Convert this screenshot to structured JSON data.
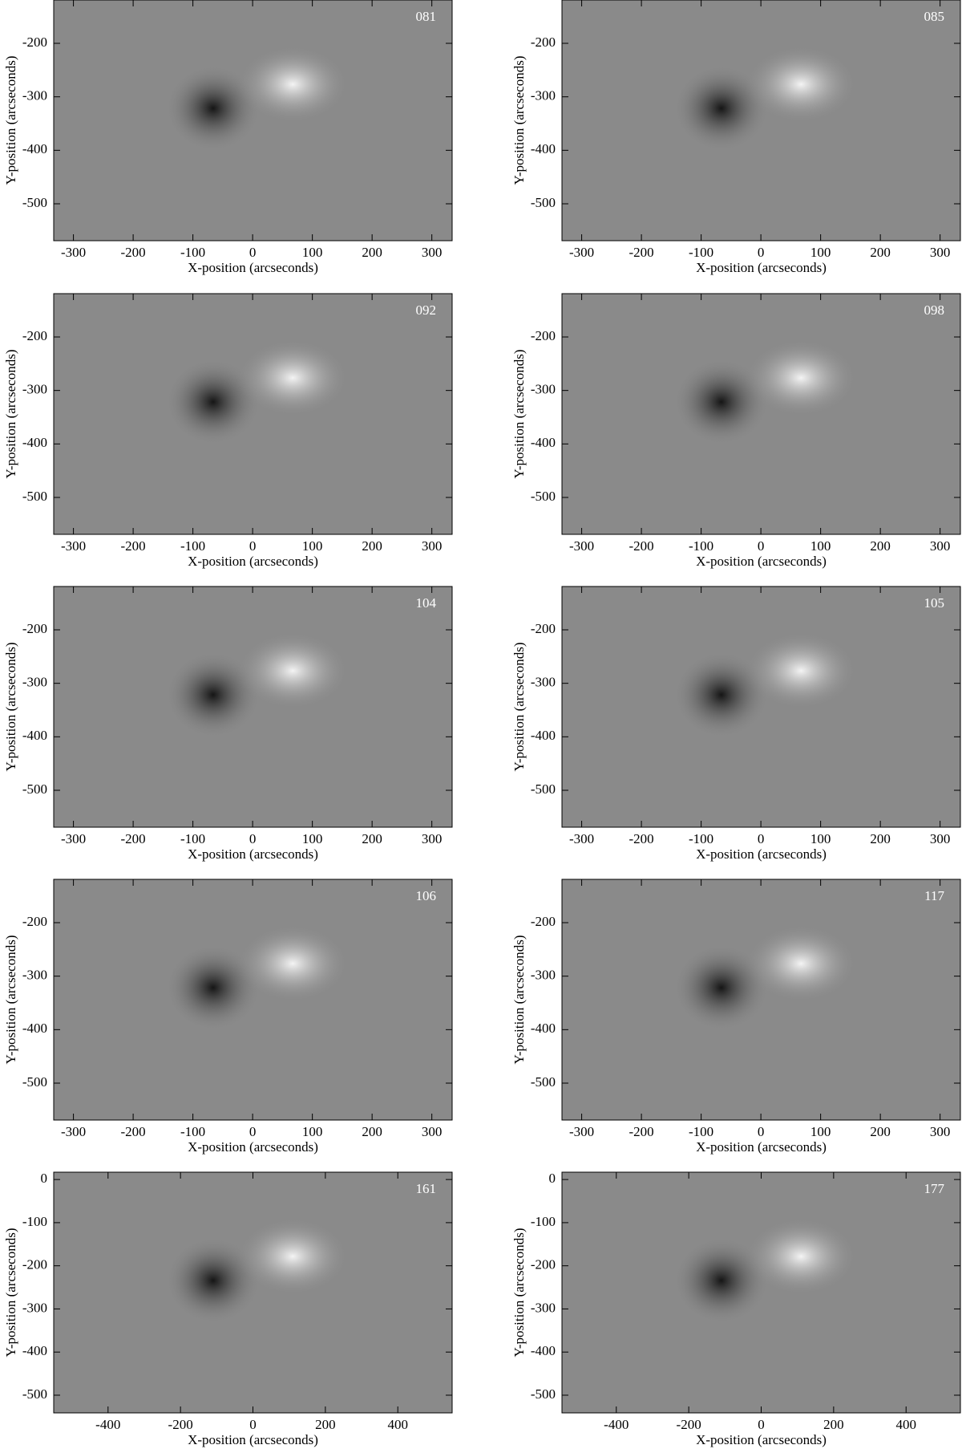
{
  "chart_data": [
    {
      "type": "image",
      "label": "081",
      "xlabel": "X-position (arcseconds)",
      "ylabel": "Y-position (arcseconds)",
      "xlim": [
        -333,
        334
      ],
      "ylim": [
        -569,
        -119
      ],
      "xticks": [
        -300,
        -200,
        -100,
        0,
        100,
        200,
        300
      ],
      "yticks": [
        -200,
        -300,
        -400,
        -500
      ]
    },
    {
      "type": "image",
      "label": "085",
      "xlabel": "X-position (arcseconds)",
      "ylabel": "Y-position (arcseconds)",
      "xlim": [
        -333,
        334
      ],
      "ylim": [
        -569,
        -119
      ],
      "xticks": [
        -300,
        -200,
        -100,
        0,
        100,
        200,
        300
      ],
      "yticks": [
        -200,
        -300,
        -400,
        -500
      ]
    },
    {
      "type": "image",
      "label": "092",
      "xlabel": "X-position (arcseconds)",
      "ylabel": "Y-position (arcseconds)",
      "xlim": [
        -333,
        334
      ],
      "ylim": [
        -569,
        -119
      ],
      "xticks": [
        -300,
        -200,
        -100,
        0,
        100,
        200,
        300
      ],
      "yticks": [
        -200,
        -300,
        -400,
        -500
      ]
    },
    {
      "type": "image",
      "label": "098",
      "xlabel": "X-position (arcseconds)",
      "ylabel": "Y-position (arcseconds)",
      "xlim": [
        -333,
        334
      ],
      "ylim": [
        -569,
        -119
      ],
      "xticks": [
        -300,
        -200,
        -100,
        0,
        100,
        200,
        300
      ],
      "yticks": [
        -200,
        -300,
        -400,
        -500
      ]
    },
    {
      "type": "image",
      "label": "104",
      "xlabel": "X-position (arcseconds)",
      "ylabel": "Y-position (arcseconds)",
      "xlim": [
        -333,
        334
      ],
      "ylim": [
        -569,
        -119
      ],
      "xticks": [
        -300,
        -200,
        -100,
        0,
        100,
        200,
        300
      ],
      "yticks": [
        -200,
        -300,
        -400,
        -500
      ]
    },
    {
      "type": "image",
      "label": "105",
      "xlabel": "X-position (arcseconds)",
      "ylabel": "Y-position (arcseconds)",
      "xlim": [
        -333,
        334
      ],
      "ylim": [
        -569,
        -119
      ],
      "xticks": [
        -300,
        -200,
        -100,
        0,
        100,
        200,
        300
      ],
      "yticks": [
        -200,
        -300,
        -400,
        -500
      ]
    },
    {
      "type": "image",
      "label": "106",
      "xlabel": "X-position (arcseconds)",
      "ylabel": "Y-position (arcseconds)",
      "xlim": [
        -333,
        334
      ],
      "ylim": [
        -569,
        -119
      ],
      "xticks": [
        -300,
        -200,
        -100,
        0,
        100,
        200,
        300
      ],
      "yticks": [
        -200,
        -300,
        -400,
        -500
      ]
    },
    {
      "type": "image",
      "label": "117",
      "xlabel": "X-position (arcseconds)",
      "ylabel": "Y-position (arcseconds)",
      "xlim": [
        -333,
        334
      ],
      "ylim": [
        -569,
        -119
      ],
      "xticks": [
        -300,
        -200,
        -100,
        0,
        100,
        200,
        300
      ],
      "yticks": [
        -200,
        -300,
        -400,
        -500
      ]
    },
    {
      "type": "image",
      "label": "161",
      "xlabel": "X-position (arcseconds)",
      "ylabel": "Y-position (arcseconds)",
      "xlim": [
        -550,
        550
      ],
      "ylim": [
        -541,
        17
      ],
      "xticks": [
        -400,
        -200,
        0,
        200,
        400
      ],
      "yticks": [
        0,
        -100,
        -200,
        -300,
        -400,
        -500
      ]
    },
    {
      "type": "image",
      "label": "177",
      "xlabel": "X-position (arcseconds)",
      "ylabel": "Y-position (arcseconds)",
      "xlim": [
        -550,
        550
      ],
      "ylim": [
        -541,
        17
      ],
      "xticks": [
        -400,
        -200,
        0,
        200,
        400
      ],
      "yticks": [
        0,
        -100,
        -200,
        -300,
        -400,
        -500
      ]
    }
  ]
}
